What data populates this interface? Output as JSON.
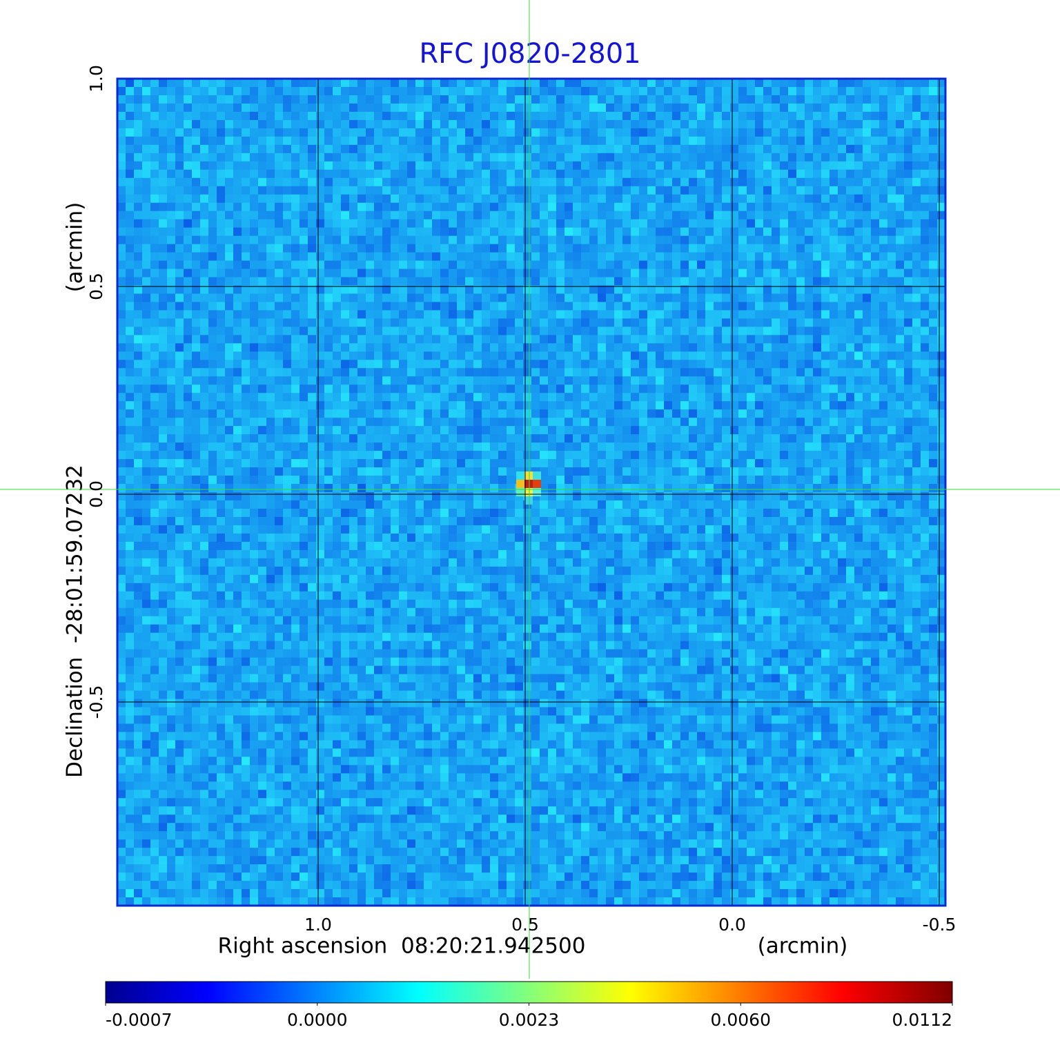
{
  "chart_data": {
    "type": "image",
    "title": "RFC J0820-2801",
    "xlabel": "Right ascension  08:20:21.942500",
    "xunit": "(arcmin)",
    "ylabel": "Declination  -28:01:59.07232",
    "yunit": "(arcmin)",
    "xlim": [
      1.485,
      -0.515
    ],
    "ylim": [
      -0.99,
      1.0
    ],
    "xticks": [
      {
        "value": 1,
        "label": "1.0"
      },
      0.5,
      {
        "value": 0,
        "label": "0.0"
      },
      -0.5
    ],
    "yticks": [
      {
        "value": 1,
        "label": "1.0"
      },
      0.5,
      {
        "value": 0,
        "label": "0.0"
      },
      -0.5
    ],
    "grid": true,
    "colorbar": {
      "ticks": [
        -0.0007,
        {
          "value": 0,
          "label": "0.0000"
        },
        0.0023,
        {
          "value": 0.006,
          "label": "0.0060"
        },
        0.0112
      ]
    }
  }
}
